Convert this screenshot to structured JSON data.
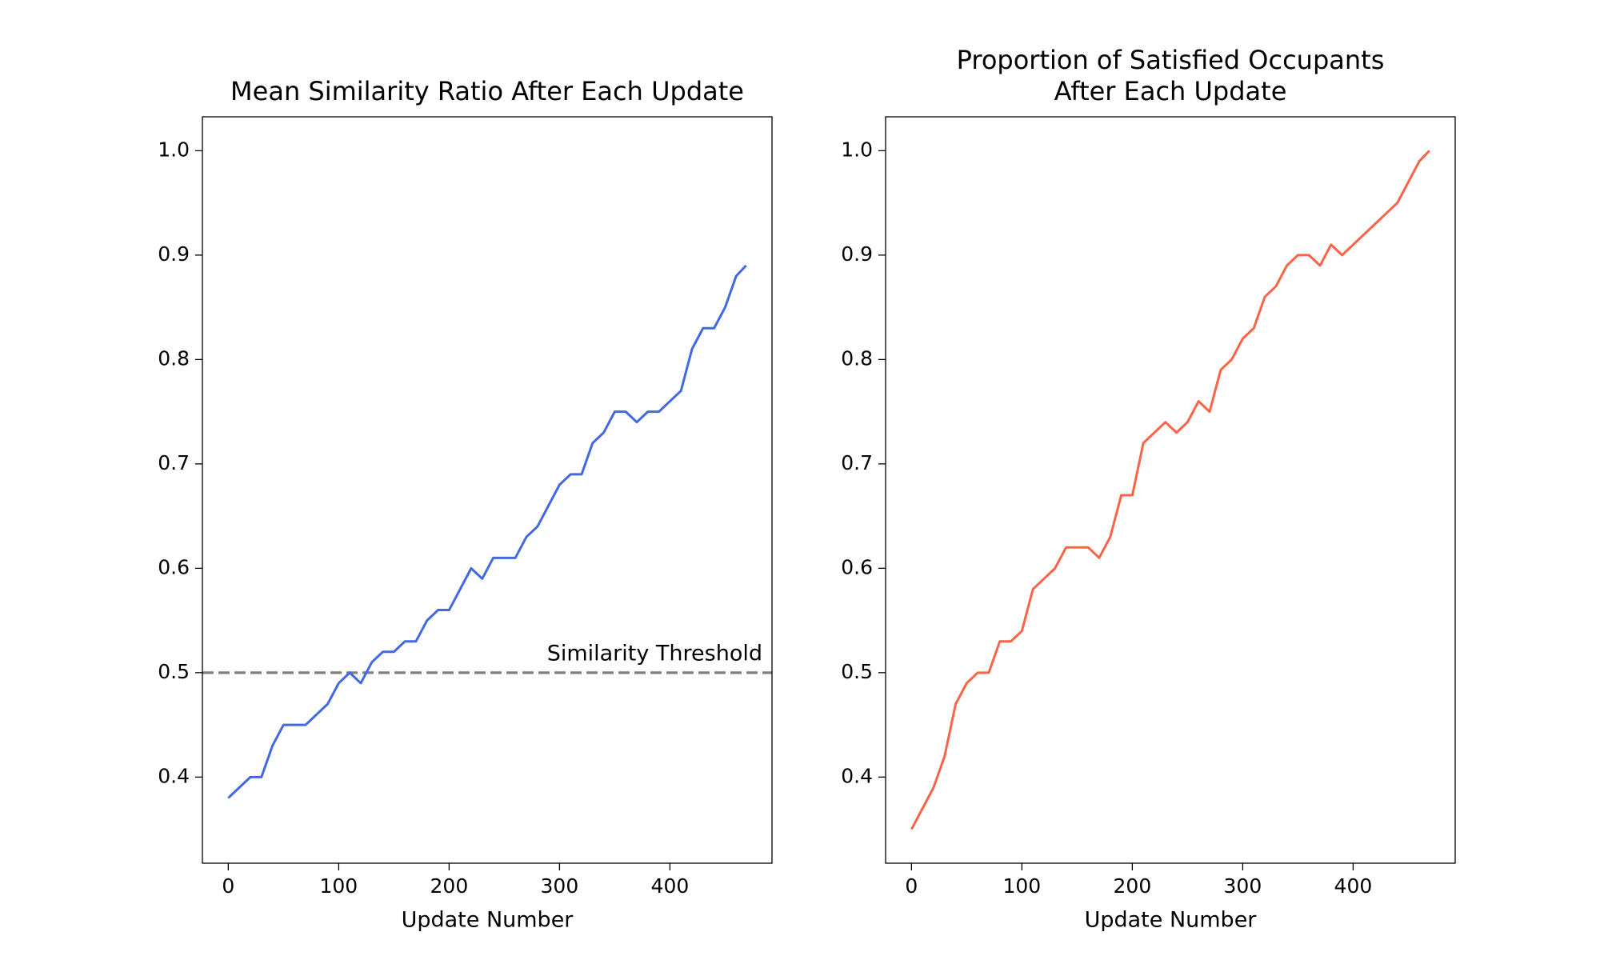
{
  "chart_data": [
    {
      "type": "line",
      "title": [
        "Mean Similarity Ratio After Each Update"
      ],
      "x_label": "Update Number",
      "x": [
        0,
        10,
        20,
        30,
        40,
        50,
        60,
        70,
        80,
        90,
        100,
        110,
        120,
        130,
        140,
        150,
        160,
        170,
        180,
        190,
        200,
        210,
        220,
        230,
        240,
        250,
        260,
        270,
        280,
        290,
        300,
        310,
        320,
        330,
        340,
        350,
        360,
        370,
        380,
        390,
        400,
        410,
        420,
        430,
        440,
        450,
        460,
        469
      ],
      "series": [
        {
          "name": "Mean Similarity Ratio",
          "color": "#4169e1",
          "values": [
            0.38,
            0.39,
            0.4,
            0.4,
            0.43,
            0.45,
            0.45,
            0.45,
            0.46,
            0.47,
            0.49,
            0.5,
            0.49,
            0.51,
            0.52,
            0.52,
            0.53,
            0.53,
            0.55,
            0.56,
            0.56,
            0.58,
            0.6,
            0.59,
            0.61,
            0.61,
            0.61,
            0.63,
            0.64,
            0.66,
            0.68,
            0.69,
            0.69,
            0.72,
            0.73,
            0.75,
            0.75,
            0.74,
            0.75,
            0.75,
            0.76,
            0.77,
            0.81,
            0.83,
            0.83,
            0.85,
            0.88,
            0.89
          ]
        }
      ],
      "threshold": {
        "value": 0.5,
        "label": "Similarity Threshold",
        "color": "#808080"
      },
      "xlim": [
        -23.45,
        492.45
      ],
      "xticks": [
        0,
        100,
        200,
        300,
        400
      ],
      "ylim": [
        0.3175,
        1.0325
      ],
      "yticks": [
        0.4,
        0.5,
        0.6,
        0.7,
        0.8,
        0.9,
        {
          "value": 1,
          "label": "1.0"
        }
      ]
    },
    {
      "type": "line",
      "title": [
        "Proportion of Satisfied Occupants",
        "After Each Update"
      ],
      "x_label": "Update Number",
      "x": [
        0,
        10,
        20,
        30,
        40,
        50,
        60,
        70,
        80,
        90,
        100,
        110,
        120,
        130,
        140,
        150,
        160,
        170,
        180,
        190,
        200,
        210,
        220,
        230,
        240,
        250,
        260,
        270,
        280,
        290,
        300,
        310,
        320,
        330,
        340,
        350,
        360,
        370,
        380,
        390,
        400,
        410,
        420,
        430,
        440,
        450,
        460,
        469
      ],
      "series": [
        {
          "name": "Proportion Satisfied",
          "color": "#ff6347",
          "values": [
            0.35,
            0.37,
            0.39,
            0.42,
            0.47,
            0.49,
            0.5,
            0.5,
            0.53,
            0.53,
            0.54,
            0.58,
            0.59,
            0.6,
            0.62,
            0.62,
            0.62,
            0.61,
            0.63,
            0.67,
            0.67,
            0.72,
            0.73,
            0.74,
            0.73,
            0.74,
            0.76,
            0.75,
            0.79,
            0.8,
            0.82,
            0.83,
            0.86,
            0.87,
            0.89,
            0.9,
            0.9,
            0.89,
            0.91,
            0.9,
            0.91,
            0.92,
            0.93,
            0.94,
            0.95,
            0.97,
            0.99,
            1.0
          ]
        }
      ],
      "xlim": [
        -23.45,
        492.45
      ],
      "xticks": [
        0,
        100,
        200,
        300,
        400
      ],
      "ylim": [
        0.3175,
        1.0325
      ],
      "yticks": [
        0.4,
        0.5,
        0.6,
        0.7,
        0.8,
        0.9,
        {
          "value": 1,
          "label": "1.0"
        }
      ]
    }
  ]
}
